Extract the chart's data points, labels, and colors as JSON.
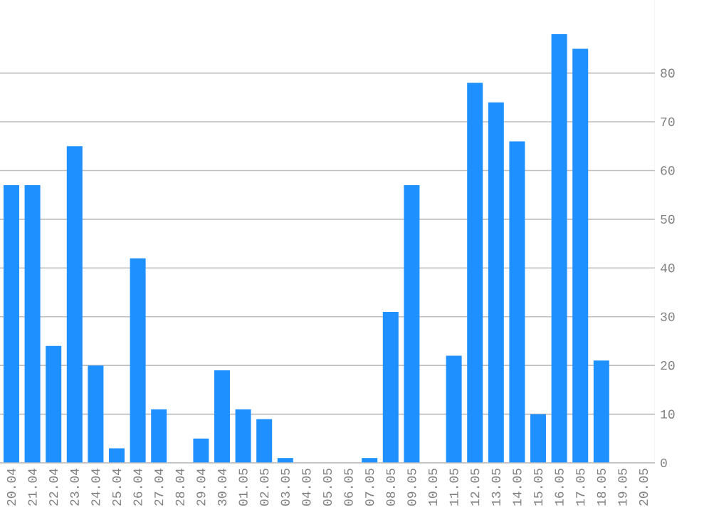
{
  "chart_data": {
    "type": "bar",
    "categories": [
      "20.04",
      "21.04",
      "22.04",
      "23.04",
      "24.04",
      "25.04",
      "26.04",
      "27.04",
      "28.04",
      "29.04",
      "30.04",
      "01.05",
      "02.05",
      "03.05",
      "04.05",
      "05.05",
      "06.05",
      "07.05",
      "08.05",
      "09.05",
      "10.05",
      "11.05",
      "12.05",
      "13.05",
      "14.05",
      "15.05",
      "16.05",
      "17.05",
      "18.05",
      "19.05",
      "20.05"
    ],
    "values": [
      57,
      57,
      24,
      65,
      20,
      3,
      42,
      11,
      0,
      5,
      19,
      11,
      9,
      1,
      0,
      0,
      0,
      1,
      31,
      57,
      0,
      22,
      78,
      74,
      66,
      10,
      88,
      85,
      21,
      0,
      0
    ],
    "color": "#1e90ff",
    "ylim": [
      0,
      95
    ],
    "yticks": [
      0,
      10,
      20,
      30,
      40,
      50,
      60,
      70,
      80
    ],
    "grid": "y"
  }
}
